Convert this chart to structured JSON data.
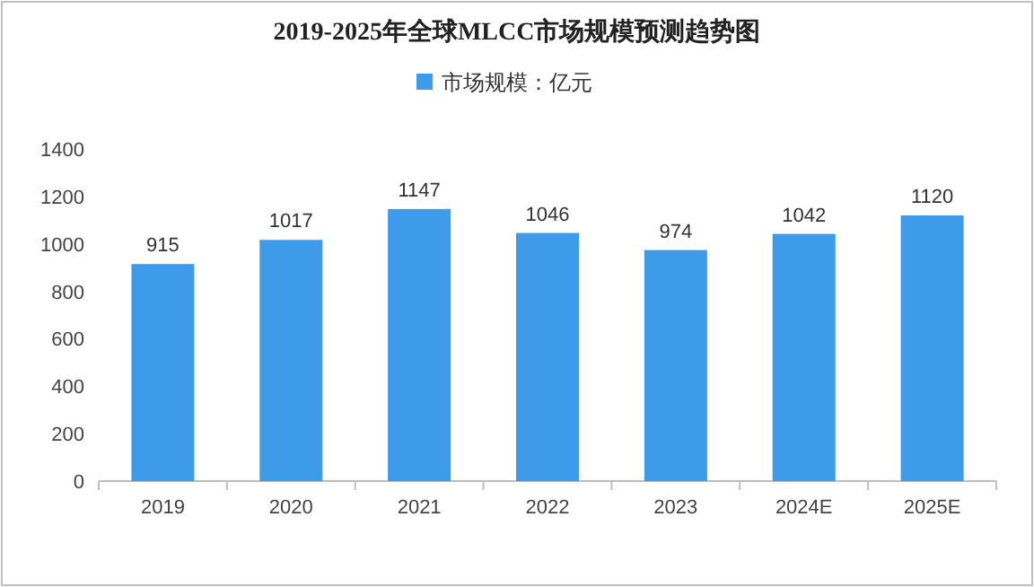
{
  "chart_data": {
    "type": "bar",
    "title": "2019-2025年全球MLCC市场规模预测趋势图",
    "categories": [
      "2019",
      "2020",
      "2021",
      "2022",
      "2023",
      "2024E",
      "2025E"
    ],
    "series": [
      {
        "name": "市场规模：亿元",
        "color": "#3d9be9",
        "values": [
          915,
          1017,
          1147,
          1046,
          974,
          1042,
          1120
        ]
      }
    ],
    "ylim": [
      0,
      1400
    ],
    "yticks": [
      0,
      200,
      400,
      600,
      800,
      1000,
      1200,
      1400
    ],
    "grid": false,
    "legend": "top",
    "data_labels": true
  }
}
